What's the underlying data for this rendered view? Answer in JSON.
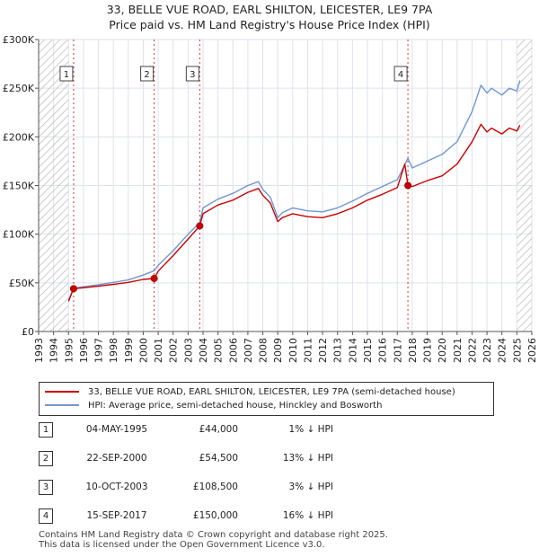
{
  "title": {
    "line1": "33, BELLE VUE ROAD, EARL SHILTON, LEICESTER, LE9 7PA",
    "line2": "Price paid vs. HM Land Registry's House Price Index (HPI)"
  },
  "colors": {
    "price_line": "#cc0000",
    "hpi_line": "#6f96d0",
    "marker_border": "#cc0000",
    "hatch": "#bbbbbb",
    "grid": "#dde2ec",
    "plot_bg": "#ffffff",
    "shade": "#e7ecf5"
  },
  "legend": {
    "price_label": "33, BELLE VUE ROAD, EARL SHILTON, LEICESTER, LE9 7PA (semi-detached house)",
    "hpi_label": "HPI: Average price, semi-detached house, Hinckley and Bosworth"
  },
  "sales": [
    {
      "num": "1",
      "date": "04-MAY-1995",
      "price": "£44,000",
      "hpi": "1% ↓ HPI"
    },
    {
      "num": "2",
      "date": "22-SEP-2000",
      "price": "£54,500",
      "hpi": "13% ↓ HPI"
    },
    {
      "num": "3",
      "date": "10-OCT-2003",
      "price": "£108,500",
      "hpi": "3% ↓ HPI"
    },
    {
      "num": "4",
      "date": "15-SEP-2017",
      "price": "£150,000",
      "hpi": "16% ↓ HPI"
    }
  ],
  "footer": {
    "line1": "Contains HM Land Registry data © Crown copyright and database right 2025.",
    "line2": "This data is licensed under the Open Government Licence v3.0."
  },
  "chart_data": {
    "type": "line",
    "title": "33, BELLE VUE ROAD, EARL SHILTON, LEICESTER, LE9 7PA — Price paid vs. HM Land Registry's House Price Index (HPI)",
    "xlabel": "",
    "ylabel": "",
    "xlim": [
      1993,
      2026
    ],
    "ylim": [
      0,
      300000
    ],
    "x_ticks": [
      "1993",
      "1994",
      "1995",
      "1996",
      "1997",
      "1998",
      "1999",
      "2000",
      "2001",
      "2002",
      "2003",
      "2004",
      "2005",
      "2006",
      "2007",
      "2008",
      "2009",
      "2010",
      "2011",
      "2012",
      "2013",
      "2014",
      "2015",
      "2016",
      "2017",
      "2018",
      "2019",
      "2020",
      "2021",
      "2022",
      "2023",
      "2024",
      "2025",
      "2026"
    ],
    "y_ticks": [
      {
        "value": 0,
        "label": "£0"
      },
      {
        "value": 50000,
        "label": "£50K"
      },
      {
        "value": 100000,
        "label": "£100K"
      },
      {
        "value": 150000,
        "label": "£150K"
      },
      {
        "value": 200000,
        "label": "£200K"
      },
      {
        "value": 250000,
        "label": "£250K"
      },
      {
        "value": 300000,
        "label": "£300K"
      }
    ],
    "hatched_ranges": [
      [
        1993,
        1995.0
      ],
      [
        2025.0,
        2026
      ]
    ],
    "sale_points": [
      {
        "label": "1",
        "year": 1995.34,
        "value": 44000
      },
      {
        "label": "2",
        "year": 2000.73,
        "value": 54500
      },
      {
        "label": "3",
        "year": 2003.78,
        "value": 108500
      },
      {
        "label": "4",
        "year": 2017.71,
        "value": 150000
      }
    ],
    "series": [
      {
        "name": "HPI: Average price, semi-detached house, Hinckley and Bosworth",
        "color": "#6f96d0",
        "x": [
          1995.0,
          1995.34,
          1996,
          1997,
          1998,
          1999,
          2000,
          2000.73,
          2001,
          2002,
          2003,
          2003.78,
          2004,
          2005,
          2006,
          2007,
          2007.7,
          2008,
          2008.5,
          2009,
          2009.3,
          2010,
          2011,
          2012,
          2013,
          2014,
          2015,
          2016,
          2017,
          2017.71,
          2018,
          2019,
          2020,
          2021,
          2022,
          2022.6,
          2023,
          2023.3,
          2024,
          2024.5,
          2025,
          2025.2
        ],
        "values": [
          32000,
          44500,
          46000,
          48000,
          50500,
          53000,
          58000,
          62500,
          68000,
          83000,
          100000,
          112000,
          127000,
          136000,
          142000,
          150000,
          154000,
          146000,
          138000,
          117000,
          122000,
          127000,
          124000,
          123000,
          127000,
          134000,
          142000,
          149000,
          156000,
          178000,
          168000,
          175000,
          182000,
          195000,
          226000,
          253000,
          245000,
          250000,
          243000,
          250000,
          247000,
          258000
        ]
      },
      {
        "name": "33, BELLE VUE ROAD, EARL SHILTON, LEICESTER, LE9 7PA (semi-detached house)",
        "color": "#cc0000",
        "x": [
          1995.0,
          1995.34,
          1996,
          1997,
          1998,
          1999,
          2000,
          2000.73,
          2001,
          2002,
          2003,
          2003.78,
          2004,
          2005,
          2006,
          2007,
          2007.7,
          2008,
          2008.5,
          2009,
          2009.3,
          2010,
          2011,
          2012,
          2013,
          2014,
          2015,
          2016,
          2017,
          2017.5,
          2017.71,
          2018,
          2019,
          2020,
          2021,
          2022,
          2022.6,
          2023,
          2023.3,
          2024,
          2024.5,
          2025,
          2025.2
        ],
        "values": [
          31000,
          44000,
          45000,
          46500,
          48500,
          50500,
          53500,
          54500,
          62000,
          78000,
          95000,
          108500,
          121000,
          130000,
          135000,
          143000,
          147000,
          140000,
          132000,
          113000,
          117000,
          121000,
          118000,
          117000,
          121000,
          127000,
          135000,
          141000,
          148000,
          172000,
          150000,
          149000,
          155000,
          160000,
          172000,
          195000,
          213000,
          205000,
          209000,
          203000,
          209000,
          206000,
          212000
        ]
      }
    ]
  }
}
